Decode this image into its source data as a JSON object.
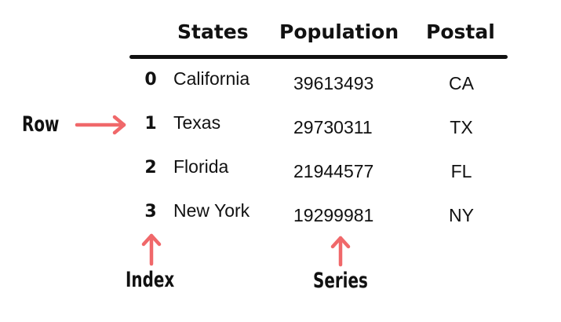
{
  "table": {
    "headers": {
      "states": "States",
      "population": "Population",
      "postal": "Postal"
    },
    "rows": [
      {
        "index": "0",
        "state": "California",
        "population": "39613493",
        "postal": "CA"
      },
      {
        "index": "1",
        "state": "Texas",
        "population": "29730311",
        "postal": "TX"
      },
      {
        "index": "2",
        "state": "Florida",
        "population": "21944577",
        "postal": "FL"
      },
      {
        "index": "3",
        "state": "New York",
        "population": "19299981",
        "postal": "NY"
      }
    ]
  },
  "callouts": {
    "row": "Row",
    "index": "Index",
    "series": "Series"
  },
  "colors": {
    "arrow": "#f0686a",
    "text": "#111111",
    "rule": "#111111"
  }
}
